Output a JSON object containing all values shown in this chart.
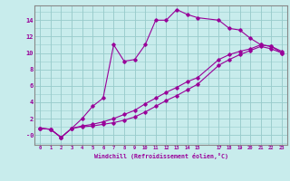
{
  "xlabel": "Windchill (Refroidissement éolien,°C)",
  "bg_color": "#c8ecec",
  "line_color": "#990099",
  "grid_color": "#99cccc",
  "spine_color": "#888888",
  "xlim": [
    -0.5,
    23.5
  ],
  "ylim": [
    -1.2,
    15.8
  ],
  "xticks": [
    0,
    1,
    2,
    3,
    4,
    5,
    6,
    7,
    8,
    9,
    10,
    11,
    12,
    13,
    14,
    15,
    17,
    18,
    19,
    20,
    21,
    22,
    23
  ],
  "yticks": [
    0,
    2,
    4,
    6,
    8,
    10,
    12,
    14
  ],
  "ytick_labels": [
    "-0",
    "2",
    "4",
    "6",
    "8",
    "10",
    "12",
    "14"
  ],
  "line1_x": [
    0,
    1,
    2,
    3,
    4,
    5,
    6,
    7,
    8,
    9,
    10,
    11,
    12,
    13,
    14,
    15,
    17,
    18,
    19,
    20,
    21,
    22,
    23
  ],
  "line1_y": [
    0.8,
    0.7,
    -0.3,
    0.8,
    2.0,
    3.5,
    4.5,
    11.0,
    9.0,
    9.2,
    11.0,
    14.0,
    14.0,
    15.3,
    14.7,
    14.3,
    14.0,
    13.0,
    12.8,
    11.8,
    11.0,
    10.8,
    10.0
  ],
  "line2_x": [
    0,
    1,
    2,
    3,
    4,
    5,
    6,
    7,
    8,
    9,
    10,
    11,
    12,
    13,
    14,
    15,
    17,
    18,
    19,
    20,
    21,
    22,
    23
  ],
  "line2_y": [
    0.8,
    0.7,
    -0.3,
    0.8,
    1.0,
    1.1,
    1.3,
    1.5,
    1.8,
    2.2,
    2.8,
    3.5,
    4.2,
    4.8,
    5.5,
    6.2,
    8.5,
    9.2,
    9.8,
    10.3,
    10.8,
    10.5,
    10.0
  ],
  "line3_x": [
    0,
    1,
    2,
    3,
    4,
    5,
    6,
    7,
    8,
    9,
    10,
    11,
    12,
    13,
    14,
    15,
    17,
    18,
    19,
    20,
    21,
    22,
    23
  ],
  "line3_y": [
    0.8,
    0.7,
    -0.3,
    0.8,
    1.1,
    1.3,
    1.6,
    2.0,
    2.5,
    3.0,
    3.8,
    4.5,
    5.2,
    5.8,
    6.5,
    7.0,
    9.2,
    9.8,
    10.2,
    10.5,
    11.0,
    10.8,
    10.2
  ]
}
